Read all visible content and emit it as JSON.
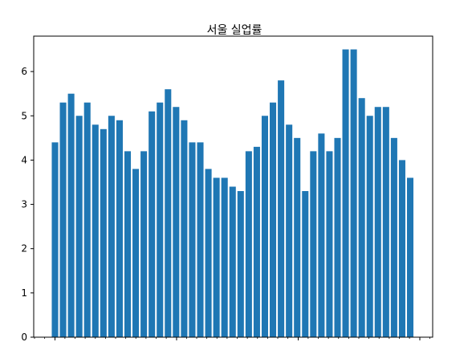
{
  "chart_data": {
    "type": "bar",
    "title": "서울 실업률",
    "xlabel": "",
    "ylabel": "",
    "ylim": [
      0,
      6.8
    ],
    "yticks": [
      0,
      1,
      2,
      3,
      4,
      5,
      6
    ],
    "ytick_labels": [
      "0",
      "1",
      "2",
      "3",
      "4",
      "5",
      "6"
    ],
    "bar_color": "#1f77b4",
    "grid": false,
    "values": [
      4.4,
      5.3,
      5.5,
      5.0,
      5.3,
      4.8,
      4.7,
      5.0,
      4.9,
      4.2,
      3.8,
      4.2,
      5.1,
      5.3,
      5.6,
      5.2,
      4.9,
      4.4,
      4.4,
      3.8,
      3.6,
      3.6,
      3.4,
      3.3,
      4.2,
      4.3,
      5.0,
      5.3,
      5.8,
      4.8,
      4.5,
      3.3,
      4.2,
      4.6,
      4.2,
      4.5,
      6.5,
      6.5,
      5.4,
      5.0,
      5.2,
      5.2,
      4.5,
      4.0,
      3.6
    ]
  }
}
